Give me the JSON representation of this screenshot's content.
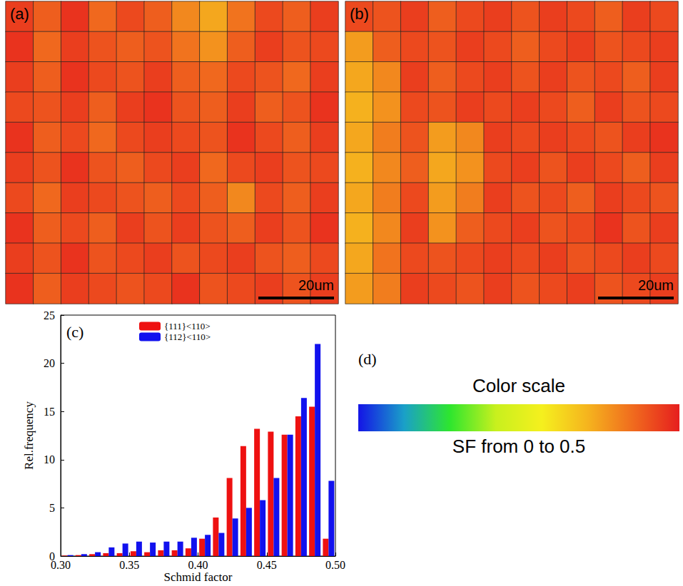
{
  "chart_data": [
    {
      "type": "heatmap",
      "panel": "(a)",
      "scale_bar": "20um",
      "cells": [
        [
          0.47,
          0.44,
          0.48,
          0.43,
          0.46,
          0.44,
          0.4,
          0.37,
          0.42,
          0.46,
          0.44,
          0.47
        ],
        [
          0.48,
          0.43,
          0.47,
          0.45,
          0.44,
          0.45,
          0.42,
          0.39,
          0.44,
          0.47,
          0.45,
          0.46
        ],
        [
          0.47,
          0.44,
          0.48,
          0.46,
          0.45,
          0.47,
          0.44,
          0.43,
          0.46,
          0.45,
          0.43,
          0.47
        ],
        [
          0.46,
          0.45,
          0.47,
          0.44,
          0.47,
          0.48,
          0.45,
          0.44,
          0.47,
          0.44,
          0.45,
          0.48
        ],
        [
          0.48,
          0.44,
          0.46,
          0.43,
          0.46,
          0.47,
          0.46,
          0.45,
          0.48,
          0.46,
          0.44,
          0.47
        ],
        [
          0.47,
          0.45,
          0.48,
          0.45,
          0.44,
          0.46,
          0.47,
          0.43,
          0.46,
          0.47,
          0.45,
          0.46
        ],
        [
          0.46,
          0.43,
          0.47,
          0.46,
          0.45,
          0.44,
          0.46,
          0.44,
          0.4,
          0.46,
          0.44,
          0.47
        ],
        [
          0.48,
          0.44,
          0.46,
          0.44,
          0.47,
          0.45,
          0.47,
          0.45,
          0.44,
          0.47,
          0.45,
          0.48
        ],
        [
          0.47,
          0.45,
          0.48,
          0.45,
          0.46,
          0.47,
          0.45,
          0.46,
          0.47,
          0.45,
          0.44,
          0.46
        ],
        [
          0.48,
          0.44,
          0.47,
          0.46,
          0.45,
          0.46,
          0.48,
          0.45,
          0.46,
          0.47,
          0.45,
          0.47
        ]
      ]
    },
    {
      "type": "heatmap",
      "panel": "(b)",
      "scale_bar": "20um",
      "cells": [
        [
          0.46,
          0.45,
          0.47,
          0.44,
          0.46,
          0.47,
          0.45,
          0.47,
          0.46,
          0.44,
          0.47,
          0.46
        ],
        [
          0.38,
          0.44,
          0.46,
          0.45,
          0.47,
          0.46,
          0.44,
          0.46,
          0.47,
          0.45,
          0.46,
          0.47
        ],
        [
          0.37,
          0.4,
          0.47,
          0.44,
          0.46,
          0.47,
          0.45,
          0.47,
          0.45,
          0.46,
          0.44,
          0.47
        ],
        [
          0.36,
          0.39,
          0.46,
          0.45,
          0.47,
          0.46,
          0.47,
          0.46,
          0.44,
          0.47,
          0.45,
          0.46
        ],
        [
          0.37,
          0.41,
          0.45,
          0.38,
          0.4,
          0.47,
          0.46,
          0.47,
          0.46,
          0.45,
          0.47,
          0.48
        ],
        [
          0.36,
          0.4,
          0.44,
          0.37,
          0.39,
          0.46,
          0.47,
          0.45,
          0.47,
          0.46,
          0.44,
          0.47
        ],
        [
          0.37,
          0.41,
          0.46,
          0.38,
          0.41,
          0.47,
          0.45,
          0.46,
          0.44,
          0.47,
          0.46,
          0.45
        ],
        [
          0.36,
          0.4,
          0.47,
          0.39,
          0.44,
          0.46,
          0.47,
          0.45,
          0.46,
          0.48,
          0.45,
          0.47
        ],
        [
          0.37,
          0.42,
          0.46,
          0.45,
          0.46,
          0.47,
          0.46,
          0.47,
          0.45,
          0.46,
          0.47,
          0.46
        ],
        [
          0.38,
          0.41,
          0.47,
          0.46,
          0.45,
          0.47,
          0.45,
          0.46,
          0.47,
          0.45,
          0.46,
          0.47
        ]
      ]
    },
    {
      "type": "bar",
      "panel": "(c)",
      "x_label": "Schmid factor",
      "y_label": "Rel.frequency",
      "bins": [
        0.3,
        0.31,
        0.32,
        0.33,
        0.34,
        0.35,
        0.36,
        0.37,
        0.38,
        0.39,
        0.4,
        0.41,
        0.42,
        0.43,
        0.44,
        0.45,
        0.46,
        0.47,
        0.48,
        0.49,
        0.5
      ],
      "series": [
        {
          "name": "{111}<110>",
          "color": "#ee1111",
          "values": [
            0.05,
            0.1,
            0.2,
            0.3,
            0.3,
            0.5,
            0.4,
            0.6,
            0.6,
            0.8,
            1.8,
            4.0,
            8.1,
            11.4,
            13.2,
            12.9,
            12.6,
            14.5,
            15.5,
            1.8
          ]
        },
        {
          "name": "{112}<110>",
          "color": "#1111ee",
          "values": [
            0.1,
            0.2,
            0.4,
            0.9,
            1.3,
            1.5,
            1.4,
            1.5,
            1.5,
            1.9,
            2.2,
            2.4,
            3.9,
            5.0,
            5.8,
            8.1,
            12.6,
            16.4,
            22.0,
            7.8
          ]
        }
      ],
      "xlim": [
        0.3,
        0.5
      ],
      "xticks": [
        {
          "value": 0.3,
          "label": "0.30"
        },
        0.35,
        {
          "value": 0.4,
          "label": "0.40"
        },
        0.45,
        {
          "value": 0.5,
          "label": "0.50"
        }
      ],
      "ylim": [
        0,
        25
      ],
      "yticks": [
        0,
        5,
        10,
        15,
        20,
        25
      ],
      "legend": "top"
    },
    {
      "type": "colorbar",
      "panel": "(d)",
      "title": "Color scale",
      "label": "SF from 0 to 0.5",
      "range": [
        0,
        0.5
      ]
    }
  ]
}
